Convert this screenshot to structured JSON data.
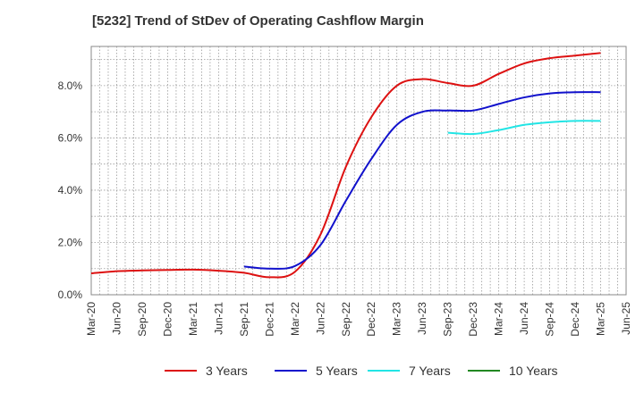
{
  "chart_data": {
    "type": "line",
    "title": "[5232]  Trend of StDev of Operating Cashflow Margin",
    "xlabel": "",
    "ylabel": "",
    "x_ticks": [
      "Mar-20",
      "Jun-20",
      "Sep-20",
      "Dec-20",
      "Mar-21",
      "Jun-21",
      "Sep-21",
      "Dec-21",
      "Mar-22",
      "Jun-22",
      "Sep-22",
      "Dec-22",
      "Mar-23",
      "Jun-23",
      "Sep-23",
      "Dec-23",
      "Mar-24",
      "Jun-24",
      "Sep-24",
      "Dec-24",
      "Mar-25",
      "Jun-25"
    ],
    "y_ticks": [
      "0.0%",
      "2.0%",
      "4.0%",
      "6.0%",
      "8.0%"
    ],
    "ylim": [
      0,
      9.5
    ],
    "grid": true,
    "legend_position": "bottom",
    "series": [
      {
        "name": "3 Years",
        "color": "#dd1111",
        "points": [
          [
            "Mar-20",
            0.82
          ],
          [
            "Jun-20",
            0.9
          ],
          [
            "Sep-20",
            0.93
          ],
          [
            "Dec-20",
            0.95
          ],
          [
            "Mar-21",
            0.96
          ],
          [
            "Jun-21",
            0.92
          ],
          [
            "Sep-21",
            0.84
          ],
          [
            "Dec-21",
            0.67
          ],
          [
            "Mar-22",
            0.88
          ],
          [
            "Jun-22",
            2.3
          ],
          [
            "Sep-22",
            4.9
          ],
          [
            "Dec-22",
            6.8
          ],
          [
            "Mar-23",
            8.0
          ],
          [
            "Jun-23",
            8.25
          ],
          [
            "Sep-23",
            8.1
          ],
          [
            "Dec-23",
            8.0
          ],
          [
            "Mar-24",
            8.45
          ],
          [
            "Jun-24",
            8.85
          ],
          [
            "Sep-24",
            9.05
          ],
          [
            "Dec-24",
            9.15
          ],
          [
            "Mar-25",
            9.25
          ]
        ]
      },
      {
        "name": "5 Years",
        "color": "#1111cc",
        "points": [
          [
            "Sep-21",
            1.08
          ],
          [
            "Dec-21",
            1.0
          ],
          [
            "Mar-22",
            1.1
          ],
          [
            "Jun-22",
            1.9
          ],
          [
            "Sep-22",
            3.6
          ],
          [
            "Dec-22",
            5.2
          ],
          [
            "Mar-23",
            6.5
          ],
          [
            "Jun-23",
            7.0
          ],
          [
            "Sep-23",
            7.05
          ],
          [
            "Dec-23",
            7.05
          ],
          [
            "Mar-24",
            7.3
          ],
          [
            "Jun-24",
            7.55
          ],
          [
            "Sep-24",
            7.7
          ],
          [
            "Dec-24",
            7.75
          ],
          [
            "Mar-25",
            7.75
          ]
        ]
      },
      {
        "name": "7 Years",
        "color": "#22e5e5",
        "points": [
          [
            "Sep-23",
            6.2
          ],
          [
            "Dec-23",
            6.15
          ],
          [
            "Mar-24",
            6.3
          ],
          [
            "Jun-24",
            6.5
          ],
          [
            "Sep-24",
            6.6
          ],
          [
            "Dec-24",
            6.65
          ],
          [
            "Mar-25",
            6.65
          ]
        ]
      },
      {
        "name": "10 Years",
        "color": "#228822",
        "points": []
      }
    ]
  }
}
